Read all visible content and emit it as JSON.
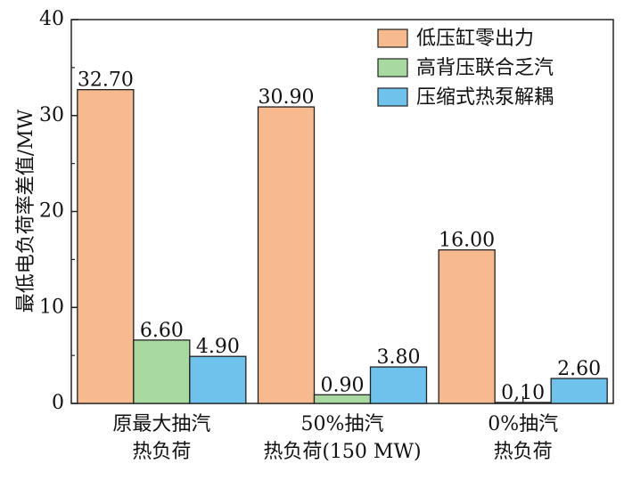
{
  "chart_data": {
    "type": "bar",
    "categories": [
      [
        "原最大抽汽",
        "热负荷"
      ],
      [
        "50%抽汽",
        "热负荷(150 MW)"
      ],
      [
        "0%抽汽",
        "热负荷"
      ]
    ],
    "series": [
      {
        "name": "低压缸零出力",
        "values": [
          32.7,
          30.9,
          16.0
        ],
        "labels": [
          "32.70",
          "30.90",
          "16.00"
        ],
        "color": "#f7b98e"
      },
      {
        "name": "高背压联合乏汽",
        "values": [
          6.6,
          0.9,
          0.1
        ],
        "labels": [
          "6.60",
          "0.90",
          "0,10"
        ],
        "color": "#a8d9a0"
      },
      {
        "name": "压缩式热泵解耦",
        "values": [
          4.9,
          3.8,
          2.6
        ],
        "labels": [
          "4.90",
          "3.80",
          "2.60"
        ],
        "color": "#6fc2ec"
      }
    ],
    "ylabel": "最低电负荷率差值/MW",
    "xlabel": "",
    "title": "",
    "ylim": [
      0,
      40
    ],
    "yticks": [
      0,
      10,
      20,
      30,
      40
    ],
    "legend_position": "top-right",
    "grid": false
  }
}
